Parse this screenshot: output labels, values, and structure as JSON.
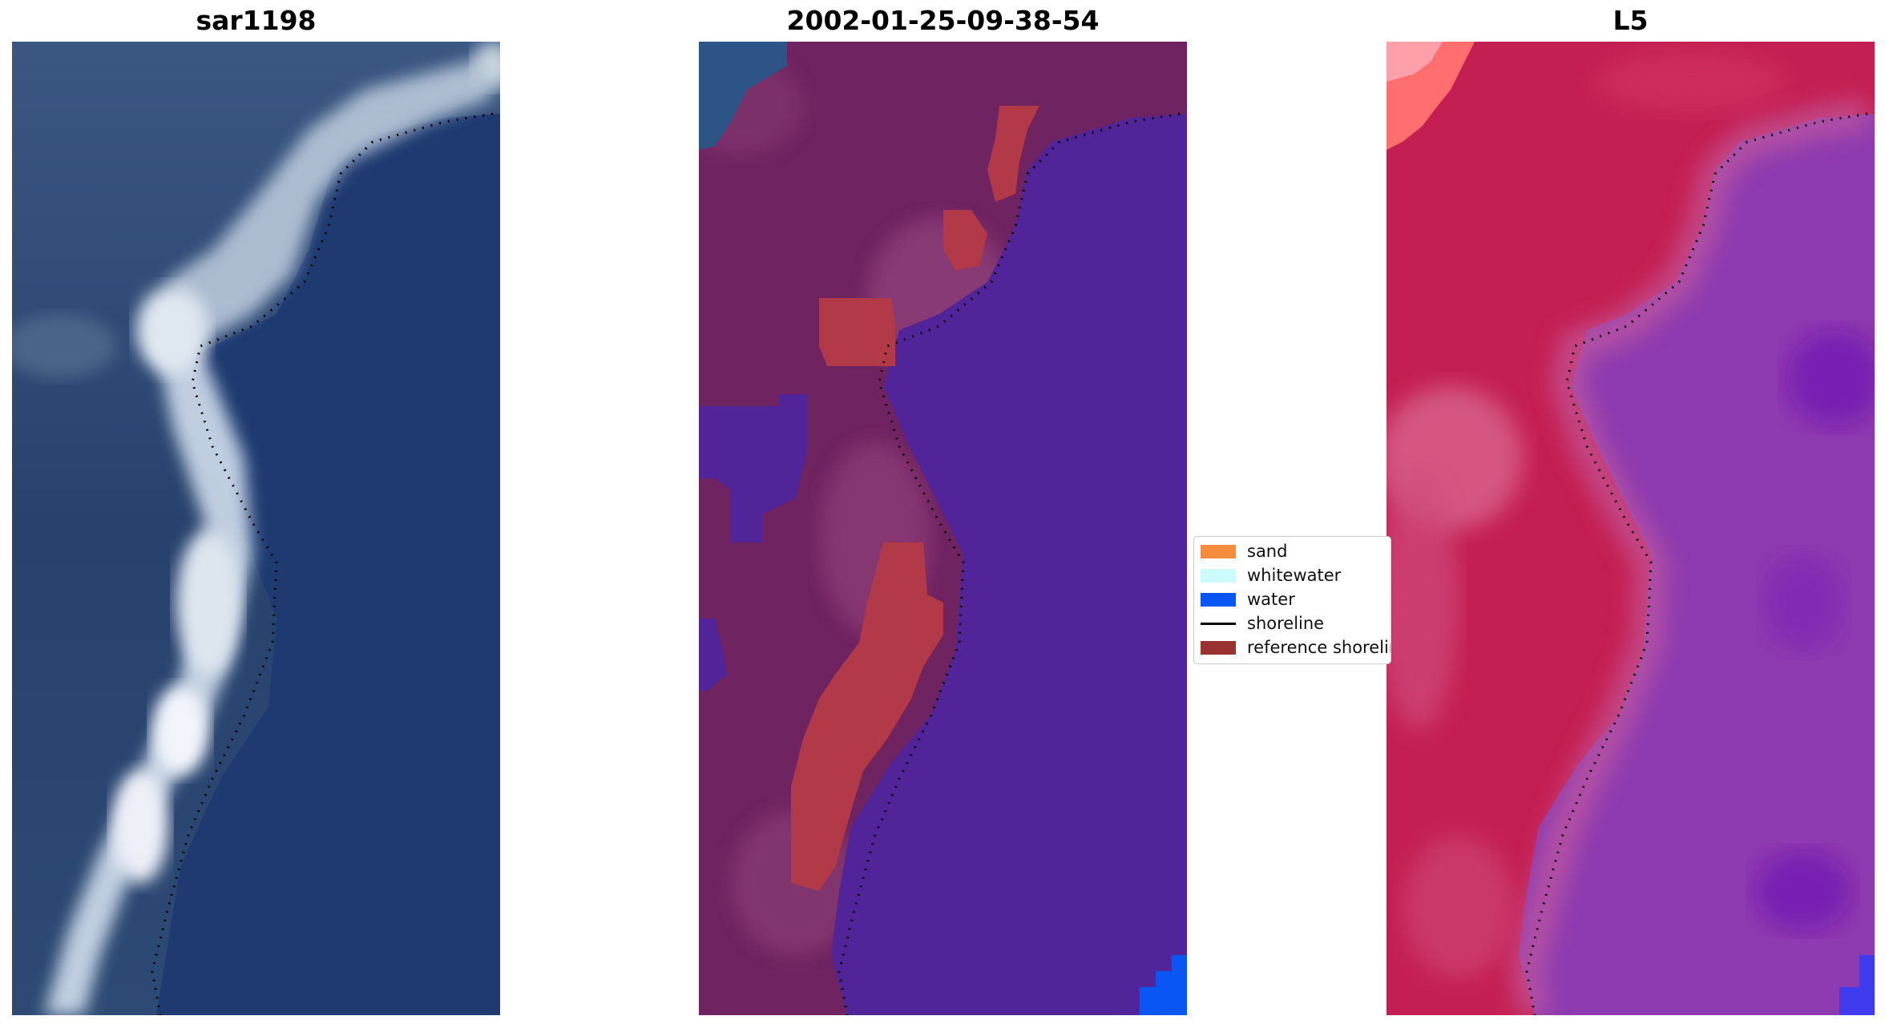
{
  "panels": [
    {
      "id": "rgb",
      "title": "sar1198"
    },
    {
      "id": "classified",
      "title": "2002-01-25-09-38-54"
    },
    {
      "id": "index",
      "title": "L5"
    }
  ],
  "legend": {
    "items": [
      {
        "label": "sand",
        "kind": "patch",
        "color": "#f58b3c"
      },
      {
        "label": "whitewater",
        "kind": "patch",
        "color": "#ccfbfc"
      },
      {
        "label": "water",
        "kind": "patch",
        "color": "#0a56f5"
      },
      {
        "label": "shoreline",
        "kind": "line",
        "color": "#000000"
      },
      {
        "label": "reference shoreline",
        "kind": "patch",
        "color": "#9b3232"
      }
    ]
  },
  "colors": {
    "rgb_water": "#1f3e74",
    "rgb_land": "#2f4f7a",
    "rgb_foam": "#c9d7e6",
    "class_land": "#6f2360",
    "class_land_light": "#8e3f78",
    "class_water": "#51249a",
    "class_sand": "#b23a48",
    "class_water_pure": "#0a56f5",
    "index_land": "#c41f52",
    "index_land_light": "#d7608a",
    "index_water": "#8e3ab0",
    "index_water_dark": "#6a10b4",
    "index_hot": "#ff6f6f",
    "index_blue": "#3f3cf0"
  }
}
